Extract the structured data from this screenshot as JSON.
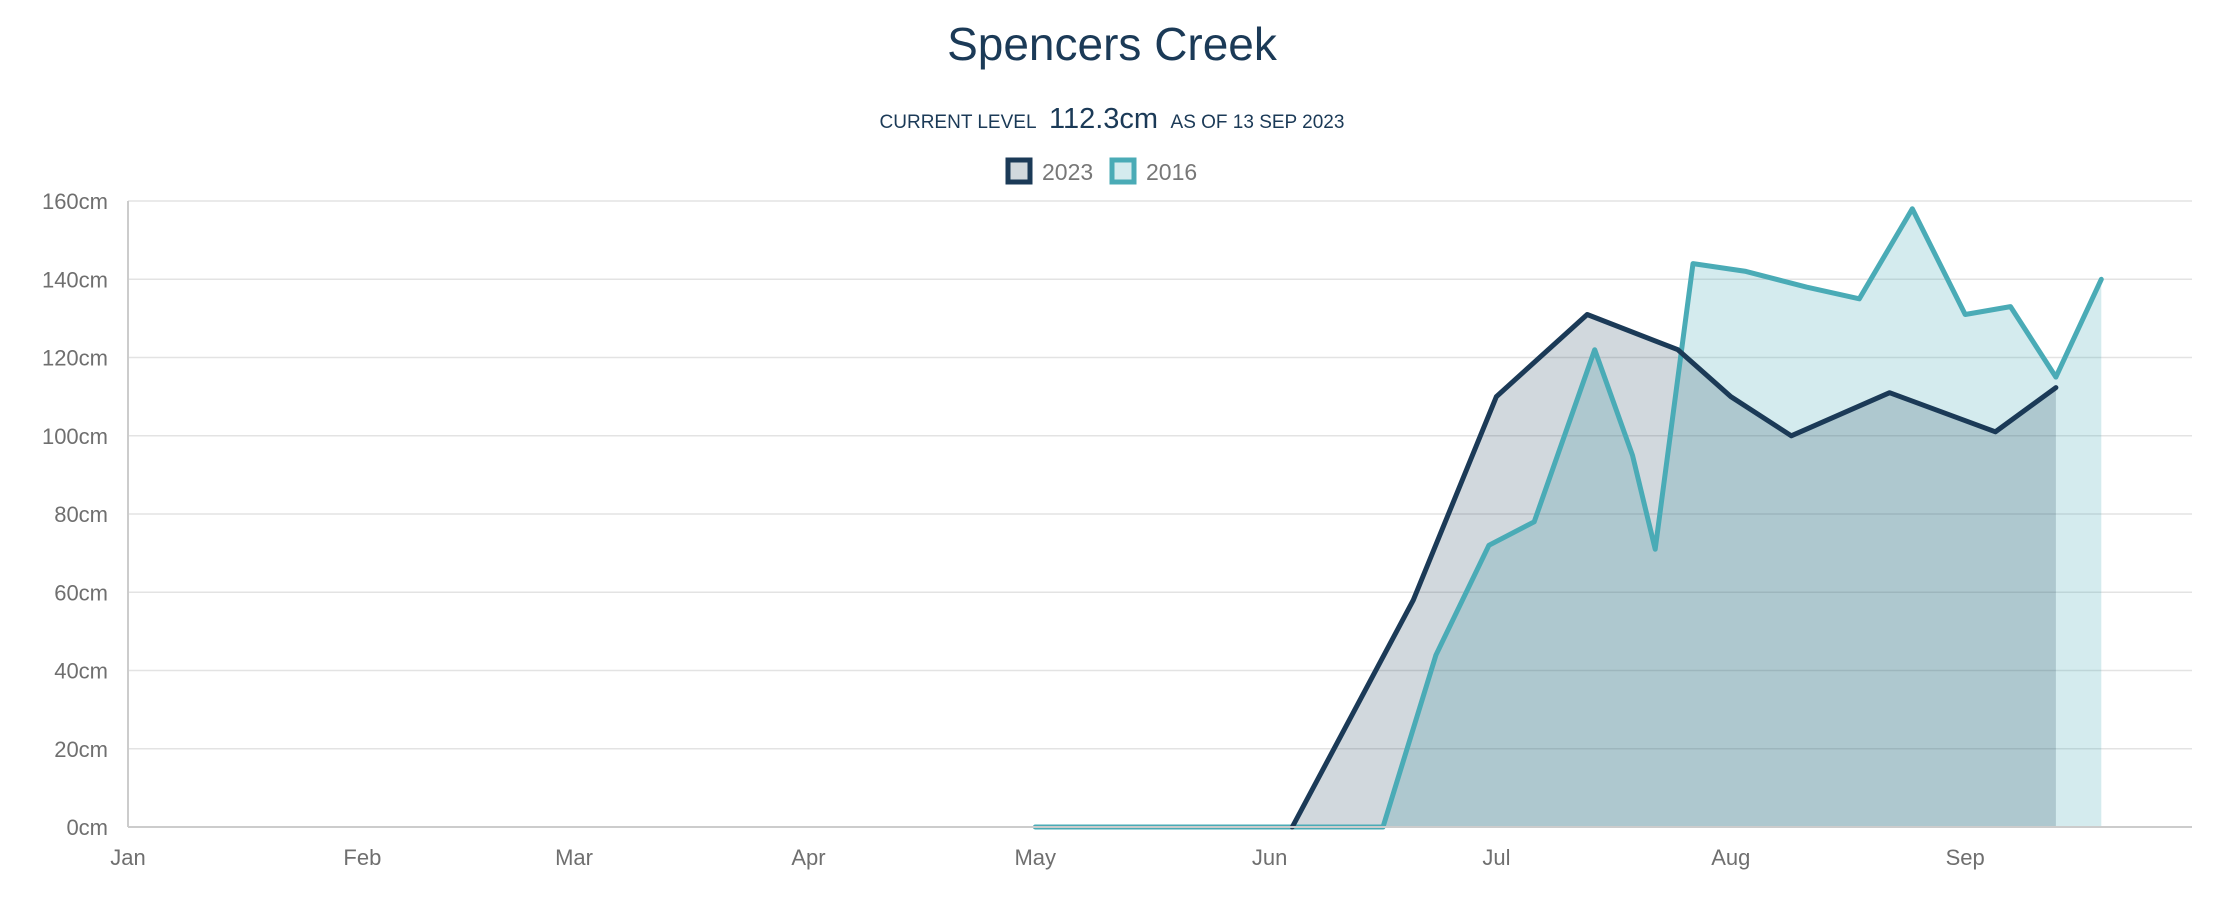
{
  "header": {
    "title": "Spencers Creek",
    "current_level_label": "CURRENT LEVEL",
    "current_level_value": "112.3cm",
    "as_of": "AS OF 13 SEP 2023"
  },
  "colors": {
    "series_2023": "#1b3a57",
    "series_2016": "#4aabb6",
    "fill_2023": "rgba(27,58,87,0.20)",
    "fill_2016": "rgba(74,171,182,0.24)"
  },
  "chart_data": {
    "type": "area",
    "title": "Spencers Creek",
    "xlabel": "",
    "ylabel": "",
    "ylim": [
      0,
      160
    ],
    "xlim": [
      "Jan",
      "Sep"
    ],
    "grid": true,
    "legend_position": "top-center",
    "y_ticks": [
      "0cm",
      "20cm",
      "40cm",
      "60cm",
      "80cm",
      "100cm",
      "120cm",
      "140cm",
      "160cm"
    ],
    "x_ticks": [
      "Jan",
      "Feb",
      "Mar",
      "Apr",
      "May",
      "Jun",
      "Jul",
      "Aug",
      "Sep"
    ],
    "series": [
      {
        "name": "2023",
        "points": [
          [
            "Jun 4",
            0
          ],
          [
            "Jun 20",
            58
          ],
          [
            "Jul 1",
            110
          ],
          [
            "Jul 13",
            131
          ],
          [
            "Jul 25",
            122
          ],
          [
            "Aug 1",
            110
          ],
          [
            "Aug 9",
            100
          ],
          [
            "Aug 22",
            111
          ],
          [
            "Sep 5",
            101
          ],
          [
            "Sep 13",
            112.3
          ]
        ]
      },
      {
        "name": "2016",
        "points": [
          [
            "May 1",
            0
          ],
          [
            "Jun 16",
            0
          ],
          [
            "Jun 23",
            44
          ],
          [
            "Jun 30",
            72
          ],
          [
            "Jul 6",
            78
          ],
          [
            "Jul 14",
            122
          ],
          [
            "Jul 19",
            95
          ],
          [
            "Jul 22",
            71
          ],
          [
            "Jul 27",
            144
          ],
          [
            "Aug 3",
            142
          ],
          [
            "Aug 11",
            138
          ],
          [
            "Aug 18",
            135
          ],
          [
            "Aug 25",
            158
          ],
          [
            "Sep 1",
            131
          ],
          [
            "Sep 7",
            133
          ],
          [
            "Sep 13",
            115
          ],
          [
            "Sep 19",
            140
          ]
        ]
      }
    ]
  }
}
